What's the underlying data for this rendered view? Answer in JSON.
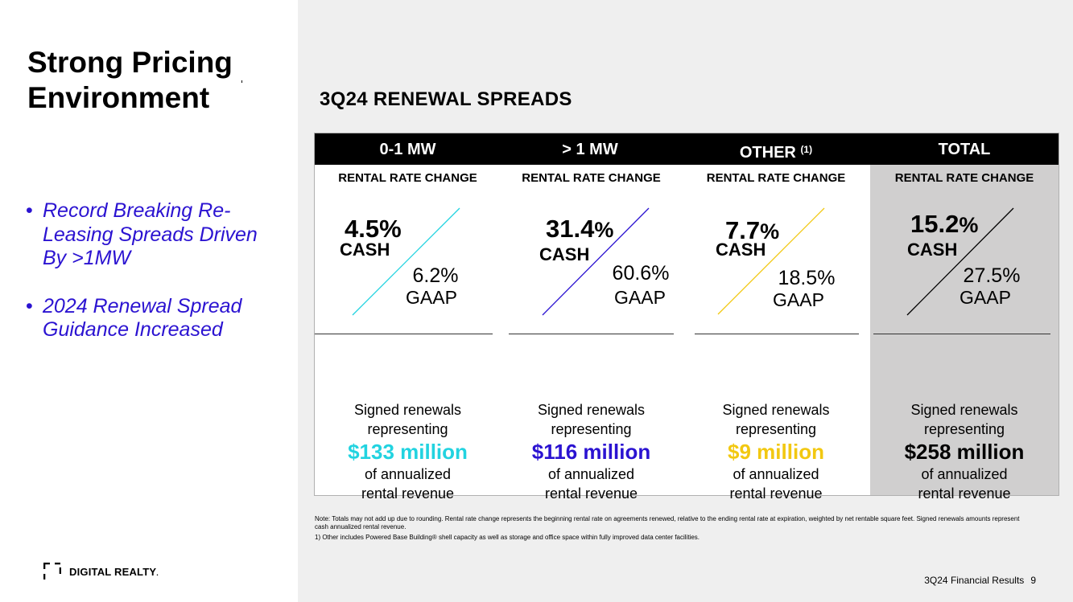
{
  "slide": {
    "title_line1": "Strong Pricing",
    "title_line2": "Environment",
    "bullets": [
      "Record Breaking Re-Leasing Spreads Driven By >1MW",
      "2024 Renewal Spread Guidance Increased"
    ],
    "bullet_symbol": "•",
    "logo_text": "DIGITAL REALTY",
    "logo_symbol": ".",
    "section_heading": "3Q24 RENEWAL SPREADS",
    "note": "Note:  Totals may not add up due to rounding. Rental rate change represents the beginning rental rate on agreements renewed, relative to the ending rental rate at expiration, weighted by net rentable square feet.  Signed renewals amounts represent cash annualized rental revenue.",
    "footnote": "1)      Other includes Powered Base Building® shell capacity as well as storage and office space within fully improved data center facilities.",
    "footer_text": "3Q24 Financial Results",
    "page_number": "9"
  },
  "columns": [
    {
      "header": "0-1 MW",
      "header_sup": "",
      "subheader": "RENTAL RATE CHANGE",
      "cash_value": "4.5",
      "cash_pct": "%",
      "cash_label": "CASH",
      "gaap_value": "6.2%",
      "gaap_label": "GAAP",
      "signed_line1": "Signed renewals",
      "signed_line2": "representing",
      "amount": "$133 million",
      "annual_line1": "of annualized",
      "annual_line2": "rental revenue",
      "accent_color": "#22d3e0"
    },
    {
      "header": "> 1 MW",
      "header_sup": "",
      "subheader": "RENTAL RATE CHANGE",
      "cash_value": "31.4",
      "cash_pct": "%",
      "cash_label": "CASH",
      "gaap_value": "60.6%",
      "gaap_label": "GAAP",
      "signed_line1": "Signed renewals",
      "signed_line2": "representing",
      "amount": "$116 million",
      "annual_line1": "of annualized",
      "annual_line2": "rental revenue",
      "accent_color": "#2b13d1"
    },
    {
      "header": "OTHER",
      "header_sup": "(1)",
      "subheader": "RENTAL RATE CHANGE",
      "cash_value": "7.7",
      "cash_pct": "%",
      "cash_label": "CASH",
      "gaap_value": "18.5%",
      "gaap_label": "GAAP",
      "signed_line1": "Signed renewals",
      "signed_line2": "representing",
      "amount": "$9 million",
      "annual_line1": "of annualized",
      "annual_line2": "rental revenue",
      "accent_color": "#f2c811"
    },
    {
      "header": "TOTAL",
      "header_sup": "",
      "subheader": "RENTAL RATE CHANGE",
      "cash_value": "15.2",
      "cash_pct": "%",
      "cash_label": "CASH",
      "gaap_value": "27.5%",
      "gaap_label": "GAAP",
      "signed_line1": "Signed renewals",
      "signed_line2": "representing",
      "amount": "$258 million",
      "annual_line1": "of annualized",
      "annual_line2": "rental revenue",
      "accent_color": "#000000"
    }
  ]
}
